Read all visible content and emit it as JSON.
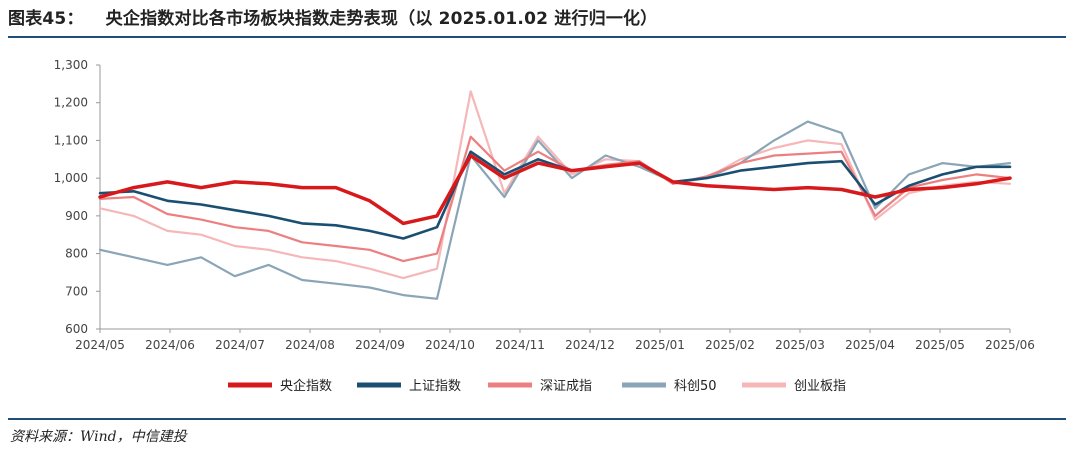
{
  "header": {
    "figure_label": "图表45：",
    "title": "央企指数对比各市场板块指数走势表现（以 2025.01.02 进行归一化）"
  },
  "footer": {
    "source": "资料来源：Wind，中信建投"
  },
  "chart_data": {
    "type": "line",
    "title": "央企指数对比各市场板块指数走势表现（以 2025.01.02 进行归一化）",
    "xlabel": "",
    "ylabel": "",
    "ylim": [
      600,
      1300
    ],
    "y_ticks": [
      600,
      700,
      800,
      900,
      1000,
      1100,
      1200,
      1300
    ],
    "y_tick_labels": [
      "600",
      "700",
      "800",
      "900",
      "1,000",
      "1,100",
      "1,200",
      "1,300"
    ],
    "x_tick_labels": [
      "2024/05",
      "2024/06",
      "2024/07",
      "2024/08",
      "2024/09",
      "2024/10",
      "2024/11",
      "2024/12",
      "2025/01",
      "2025/02",
      "2025/03",
      "2025/04",
      "2025/05",
      "2025/06"
    ],
    "grid": false,
    "legend_position": "bottom",
    "x": [
      "2024/05",
      "2024/05m",
      "2024/06",
      "2024/06m",
      "2024/07",
      "2024/07m",
      "2024/08",
      "2024/08m",
      "2024/09",
      "2024/09m",
      "2024/09e",
      "2024/10",
      "2024/10m",
      "2024/11",
      "2024/11m",
      "2024/12",
      "2024/12m",
      "2025/01",
      "2025/01m",
      "2025/02",
      "2025/02m",
      "2025/03",
      "2025/03m",
      "2025/04",
      "2025/04m",
      "2025/05",
      "2025/05m",
      "2025/06"
    ],
    "series": [
      {
        "name": "央企指数",
        "color": "#d7191c",
        "width": 3.5,
        "values": [
          950,
          975,
          990,
          975,
          990,
          985,
          975,
          975,
          940,
          880,
          900,
          1060,
          1000,
          1040,
          1020,
          1030,
          1040,
          990,
          980,
          975,
          970,
          975,
          970,
          950,
          970,
          975,
          985,
          1000
        ]
      },
      {
        "name": "上证指数",
        "color": "#1b4f72",
        "width": 2.6,
        "values": [
          960,
          965,
          940,
          930,
          915,
          900,
          880,
          875,
          860,
          840,
          870,
          1070,
          1010,
          1050,
          1020,
          1030,
          1040,
          990,
          1000,
          1020,
          1030,
          1040,
          1045,
          930,
          980,
          1010,
          1030,
          1030
        ]
      },
      {
        "name": "深证成指",
        "color": "#ec7f80",
        "width": 2.2,
        "values": [
          945,
          950,
          905,
          890,
          870,
          860,
          830,
          820,
          810,
          780,
          800,
          1110,
          1020,
          1070,
          1020,
          1035,
          1045,
          985,
          1005,
          1040,
          1060,
          1065,
          1070,
          900,
          975,
          995,
          1010,
          1000
        ]
      },
      {
        "name": "科创50",
        "color": "#8aa5b8",
        "width": 2.2,
        "values": [
          810,
          790,
          770,
          790,
          740,
          770,
          730,
          720,
          710,
          690,
          680,
          1060,
          950,
          1100,
          1000,
          1060,
          1030,
          990,
          1000,
          1040,
          1100,
          1150,
          1120,
          920,
          1010,
          1040,
          1030,
          1040
        ]
      },
      {
        "name": "创业板指",
        "color": "#f5b7b8",
        "width": 2.2,
        "values": [
          920,
          900,
          860,
          850,
          820,
          810,
          790,
          780,
          760,
          735,
          760,
          1230,
          960,
          1110,
          1010,
          1050,
          1045,
          985,
          1000,
          1050,
          1080,
          1100,
          1090,
          890,
          960,
          980,
          990,
          985
        ]
      }
    ]
  }
}
